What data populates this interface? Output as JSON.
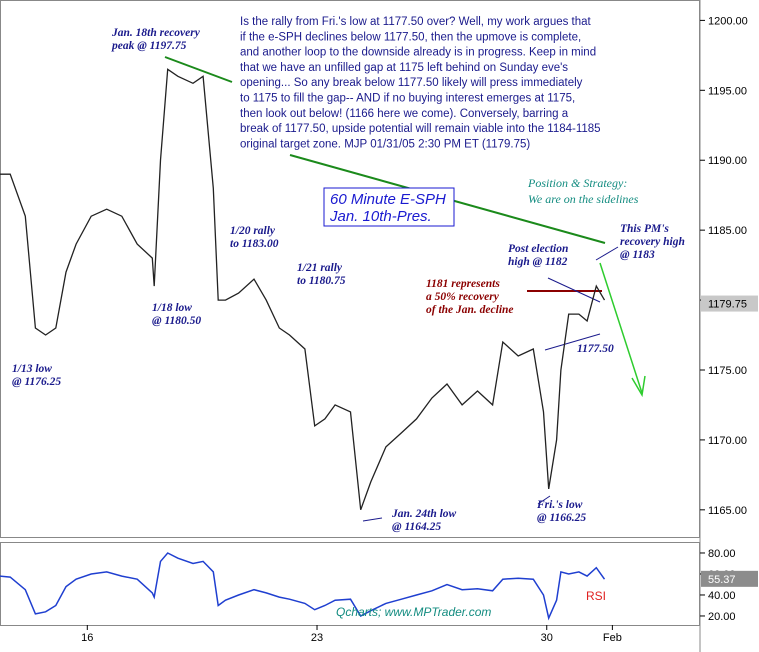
{
  "chart_data": {
    "type": "line",
    "x": [
      13.34,
      13.65,
      14.11,
      14.42,
      14.73,
      15.04,
      15.35,
      15.66,
      16.12,
      16.59,
      17.05,
      17.52,
      17.98,
      18.04,
      18.23,
      18.45,
      18.76,
      19.22,
      19.53,
      19.84,
      19.99,
      20.21,
      20.61,
      21.08,
      21.45,
      21.85,
      22.16,
      22.63,
      22.93,
      23.24,
      23.55,
      24.02,
      24.33,
      24.64,
      25.1,
      25.57,
      26.03,
      26.5,
      26.96,
      27.42,
      27.89,
      28.35,
      28.66,
      29.13,
      29.59,
      29.9,
      30.06,
      30.3,
      30.43,
      30.67,
      30.98,
      31.23,
      31.51,
      31.76
    ],
    "series": [
      {
        "color": "#222222",
        "values": [
          1189,
          1189,
          1186,
          1178,
          1177.5,
          1178,
          1182,
          1184,
          1186,
          1186.5,
          1186,
          1184,
          1183,
          1181,
          1190,
          1196.5,
          1196,
          1195.5,
          1196,
          1188,
          1180,
          1180,
          1180.5,
          1181.5,
          1180,
          1178,
          1177.5,
          1176.5,
          1171,
          1171.5,
          1172.5,
          1172,
          1165,
          1167,
          1169.5,
          1170.5,
          1171.5,
          1173,
          1174,
          1172.5,
          1173.5,
          1172.5,
          1177,
          1176,
          1176.5,
          1172,
          1166.5,
          1170,
          1175,
          1179,
          1179,
          1178.5,
          1181,
          1180
        ]
      },
      {
        "color": "#1f3fd0",
        "axis": "rsi",
        "values": [
          58,
          57,
          45,
          22,
          24,
          30,
          48,
          55,
          60,
          62,
          58,
          55,
          42,
          38,
          72,
          80,
          75,
          70,
          72,
          62,
          30,
          35,
          40,
          45,
          42,
          38,
          36,
          32,
          26,
          30,
          35,
          36,
          20,
          25,
          32,
          36,
          40,
          44,
          50,
          45,
          46,
          44,
          55,
          56,
          55,
          40,
          18,
          35,
          62,
          60,
          62,
          58,
          66,
          55
        ]
      }
    ],
    "xlim": [
      13.34,
      34.67
    ],
    "xticks": [
      16,
      23,
      30,
      {
        "value": 32,
        "label": "Feb"
      }
    ],
    "ylim": [
      1163.2,
      1201.1
    ],
    "yticks": [
      {
        "value": 1200,
        "label": "1200.00"
      },
      {
        "value": 1195,
        "label": "1195.00"
      },
      {
        "value": 1190,
        "label": "1190.00"
      },
      {
        "value": 1185,
        "label": "1185.00"
      },
      {
        "value": 1180,
        "label": "1180.00"
      },
      {
        "value": 1175,
        "label": "1175.00"
      },
      {
        "value": 1170,
        "label": "1170.00"
      },
      {
        "value": 1165,
        "label": "1165.00"
      }
    ],
    "rsi_lim": [
      11.4,
      87.6
    ],
    "rsi_ticks": [
      {
        "value": 80,
        "label": "80.00"
      },
      {
        "value": 60,
        "label": "60.00"
      },
      {
        "value": 40,
        "label": "40.00"
      },
      {
        "value": 20,
        "label": "20.00"
      }
    ],
    "last_price": {
      "value": 1179.75,
      "label": "1179.75"
    },
    "last_rsi": 55.37,
    "commentary": [
      "Is the rally from Fri.'s low at 1177.50 over? Well, my work argues that",
      "if the e-SPH declines below 1177.50, then the upmove is complete,",
      "and another loop to the downside already is in progress. Keep in mind",
      "that we have an unfilled gap at 1175 left behind on Sunday eve's",
      "opening... So any break below 1177.50 likely will press immediately",
      "to 1175 to fill the gap-- AND if no buying interest emerges at 1175,",
      "then look out below! (1166 here we come). Conversely, barring a",
      "break of 1177.50, upside potential will remain viable into the 1184-1185",
      "original target zone. MJP 01/31/05  2:30 PM ET (1179.75)"
    ],
    "annotations": [
      {
        "lines": [
          "Jan. 18th recovery",
          "peak @ 1197.75"
        ]
      },
      {
        "lines": [
          "1/13 low",
          "@ 1176.25"
        ]
      },
      {
        "lines": [
          "1/18 low",
          "@ 1180.50"
        ]
      },
      {
        "lines": [
          "1/20 rally",
          "to 1183.00"
        ]
      },
      {
        "lines": [
          "1/21 rally",
          "to 1180.75"
        ]
      },
      {
        "lines": [
          "Jan. 24th low",
          "@ 1164.25"
        ]
      },
      {
        "lines": [
          "Fri.'s low",
          "@ 1166.25"
        ]
      },
      {
        "lines": [
          "Post election",
          "high @ 1182"
        ]
      },
      {
        "lines": [
          "1181 represents",
          "a 50% recovery",
          "of the Jan. decline"
        ]
      },
      {
        "lines": [
          "1177.50"
        ]
      },
      {
        "lines": [
          "This PM's",
          "recovery high",
          "@ 1183"
        ]
      },
      {
        "lines": [
          "Position & Strategy:",
          "We are on the sidelines"
        ]
      },
      {
        "lines": [
          "60 Minute E-SPH",
          "Jan. 10th-Pres."
        ]
      },
      {
        "lines": [
          "Qcharts; www.MPTrader.com"
        ]
      },
      {
        "lines": [
          "RSI"
        ]
      }
    ]
  }
}
